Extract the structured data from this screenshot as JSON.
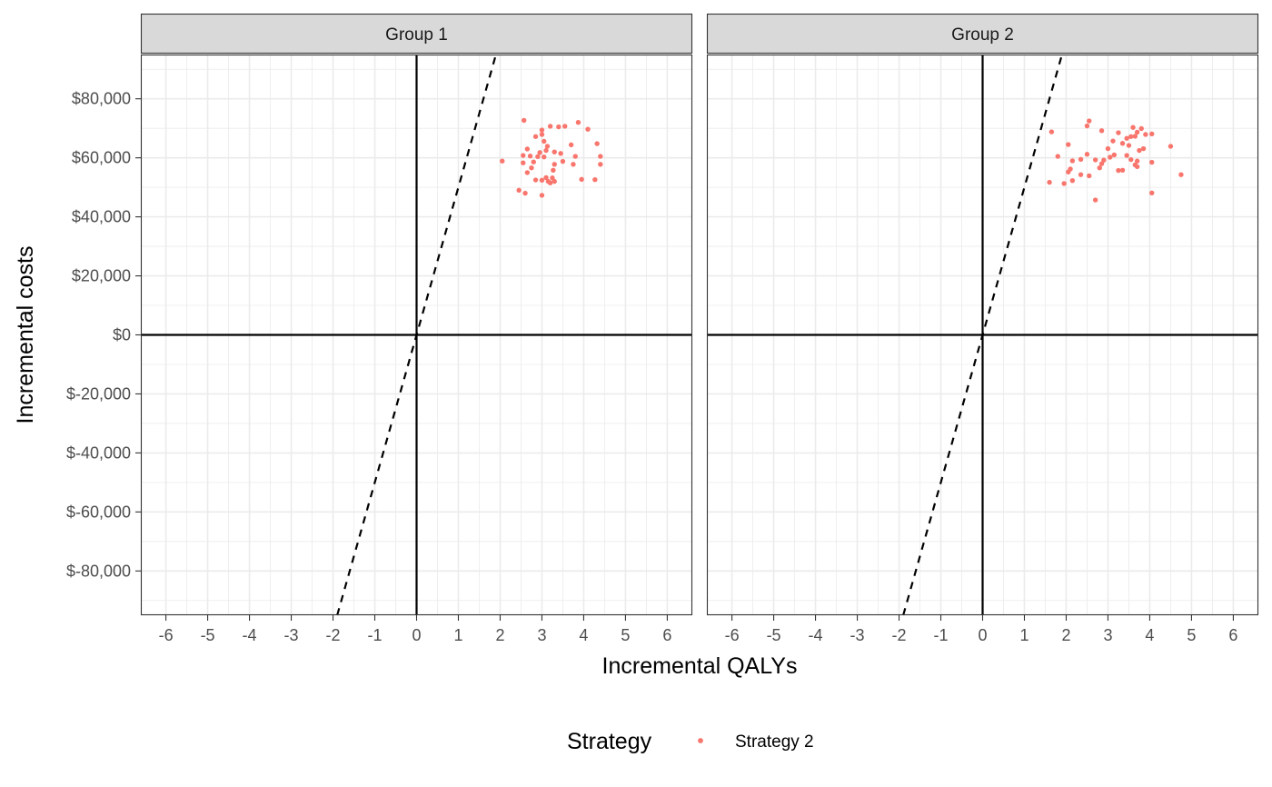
{
  "chart_data": {
    "type": "scatter",
    "xlabel": "Incremental QALYs",
    "ylabel": "Incremental costs",
    "xlim": [
      -6.6,
      6.6
    ],
    "ylim": [
      -95000,
      95000
    ],
    "x_ticks": [
      -6,
      -5,
      -4,
      -3,
      -2,
      -1,
      0,
      1,
      2,
      3,
      4,
      5,
      6
    ],
    "x_tick_labels": [
      "-6",
      "-5",
      "-4",
      "-3",
      "-2",
      "-1",
      "0",
      "1",
      "2",
      "3",
      "4",
      "5",
      "6"
    ],
    "y_ticks": [
      -80000,
      -60000,
      -40000,
      -20000,
      0,
      20000,
      40000,
      60000,
      80000
    ],
    "y_tick_labels": [
      "$-80,000",
      "$-60,000",
      "$-40,000",
      "$-20,000",
      "$0",
      "$20,000",
      "$40,000",
      "$60,000",
      "$80,000"
    ],
    "grid": true,
    "reference_lines": {
      "horizontal": 0,
      "vertical": 0,
      "wtp_slope": 50000
    },
    "legend": {
      "title": "Strategy",
      "position": "bottom",
      "entries": [
        "Strategy 2"
      ]
    },
    "colors": {
      "series": "#F8766D",
      "strip_bg": "#D9D9D9",
      "grid": "#EBEBEB",
      "border": "#333333"
    },
    "facets": [
      {
        "title": "Group 1",
        "series": [
          {
            "name": "Strategy 2",
            "points": [
              [
                2.57,
                72700
              ],
              [
                3.0,
                69400
              ],
              [
                3.2,
                70700
              ],
              [
                3.4,
                70500
              ],
              [
                3.55,
                70700
              ],
              [
                3.87,
                72000
              ],
              [
                4.1,
                69700
              ],
              [
                2.85,
                67200
              ],
              [
                3.0,
                67900
              ],
              [
                3.05,
                65600
              ],
              [
                3.7,
                64400
              ],
              [
                4.32,
                64800
              ],
              [
                3.13,
                63900
              ],
              [
                2.65,
                63000
              ],
              [
                3.1,
                62500
              ],
              [
                2.95,
                61800
              ],
              [
                3.3,
                62000
              ],
              [
                3.45,
                61500
              ],
              [
                2.55,
                60800
              ],
              [
                2.72,
                60600
              ],
              [
                2.9,
                60400
              ],
              [
                3.05,
                60300
              ],
              [
                3.8,
                60500
              ],
              [
                4.4,
                60500
              ],
              [
                2.05,
                58900
              ],
              [
                2.55,
                58300
              ],
              [
                2.8,
                58600
              ],
              [
                3.5,
                58800
              ],
              [
                3.75,
                57800
              ],
              [
                4.4,
                57800
              ],
              [
                3.3,
                57800
              ],
              [
                2.75,
                56600
              ],
              [
                3.27,
                55800
              ],
              [
                2.65,
                55000
              ],
              [
                3.1,
                53300
              ],
              [
                3.25,
                53200
              ],
              [
                2.85,
                52500
              ],
              [
                3.0,
                52400
              ],
              [
                3.15,
                52000
              ],
              [
                3.3,
                52000
              ],
              [
                3.95,
                52700
              ],
              [
                4.27,
                52600
              ],
              [
                3.2,
                51500
              ],
              [
                2.45,
                49000
              ],
              [
                2.6,
                48000
              ],
              [
                3.0,
                47300
              ]
            ]
          }
        ]
      },
      {
        "title": "Group 2",
        "series": [
          {
            "name": "Strategy 2",
            "points": [
              [
                2.55,
                72500
              ],
              [
                2.5,
                70800
              ],
              [
                3.6,
                70300
              ],
              [
                3.8,
                69900
              ],
              [
                1.65,
                68800
              ],
              [
                2.85,
                69200
              ],
              [
                3.25,
                68500
              ],
              [
                3.7,
                68700
              ],
              [
                3.9,
                67900
              ],
              [
                4.05,
                68100
              ],
              [
                3.45,
                66600
              ],
              [
                3.55,
                67200
              ],
              [
                3.65,
                67300
              ],
              [
                3.12,
                65700
              ],
              [
                3.35,
                64900
              ],
              [
                2.05,
                64500
              ],
              [
                3.5,
                64200
              ],
              [
                4.5,
                63900
              ],
              [
                3.0,
                63100
              ],
              [
                3.75,
                62500
              ],
              [
                3.85,
                63100
              ],
              [
                2.5,
                61200
              ],
              [
                3.15,
                61000
              ],
              [
                3.45,
                60800
              ],
              [
                1.8,
                60500
              ],
              [
                3.05,
                60200
              ],
              [
                2.35,
                59500
              ],
              [
                2.7,
                59300
              ],
              [
                2.9,
                59200
              ],
              [
                2.15,
                59000
              ],
              [
                3.55,
                59400
              ],
              [
                3.7,
                58900
              ],
              [
                4.05,
                58500
              ],
              [
                2.85,
                58000
              ],
              [
                3.65,
                57600
              ],
              [
                3.7,
                57000
              ],
              [
                2.1,
                56200
              ],
              [
                2.8,
                56600
              ],
              [
                3.25,
                55700
              ],
              [
                3.35,
                55800
              ],
              [
                2.05,
                55200
              ],
              [
                2.35,
                54300
              ],
              [
                2.55,
                53900
              ],
              [
                4.75,
                54300
              ],
              [
                2.15,
                52300
              ],
              [
                1.6,
                51700
              ],
              [
                1.95,
                51300
              ],
              [
                4.05,
                48100
              ],
              [
                2.7,
                45700
              ]
            ]
          }
        ]
      }
    ]
  }
}
